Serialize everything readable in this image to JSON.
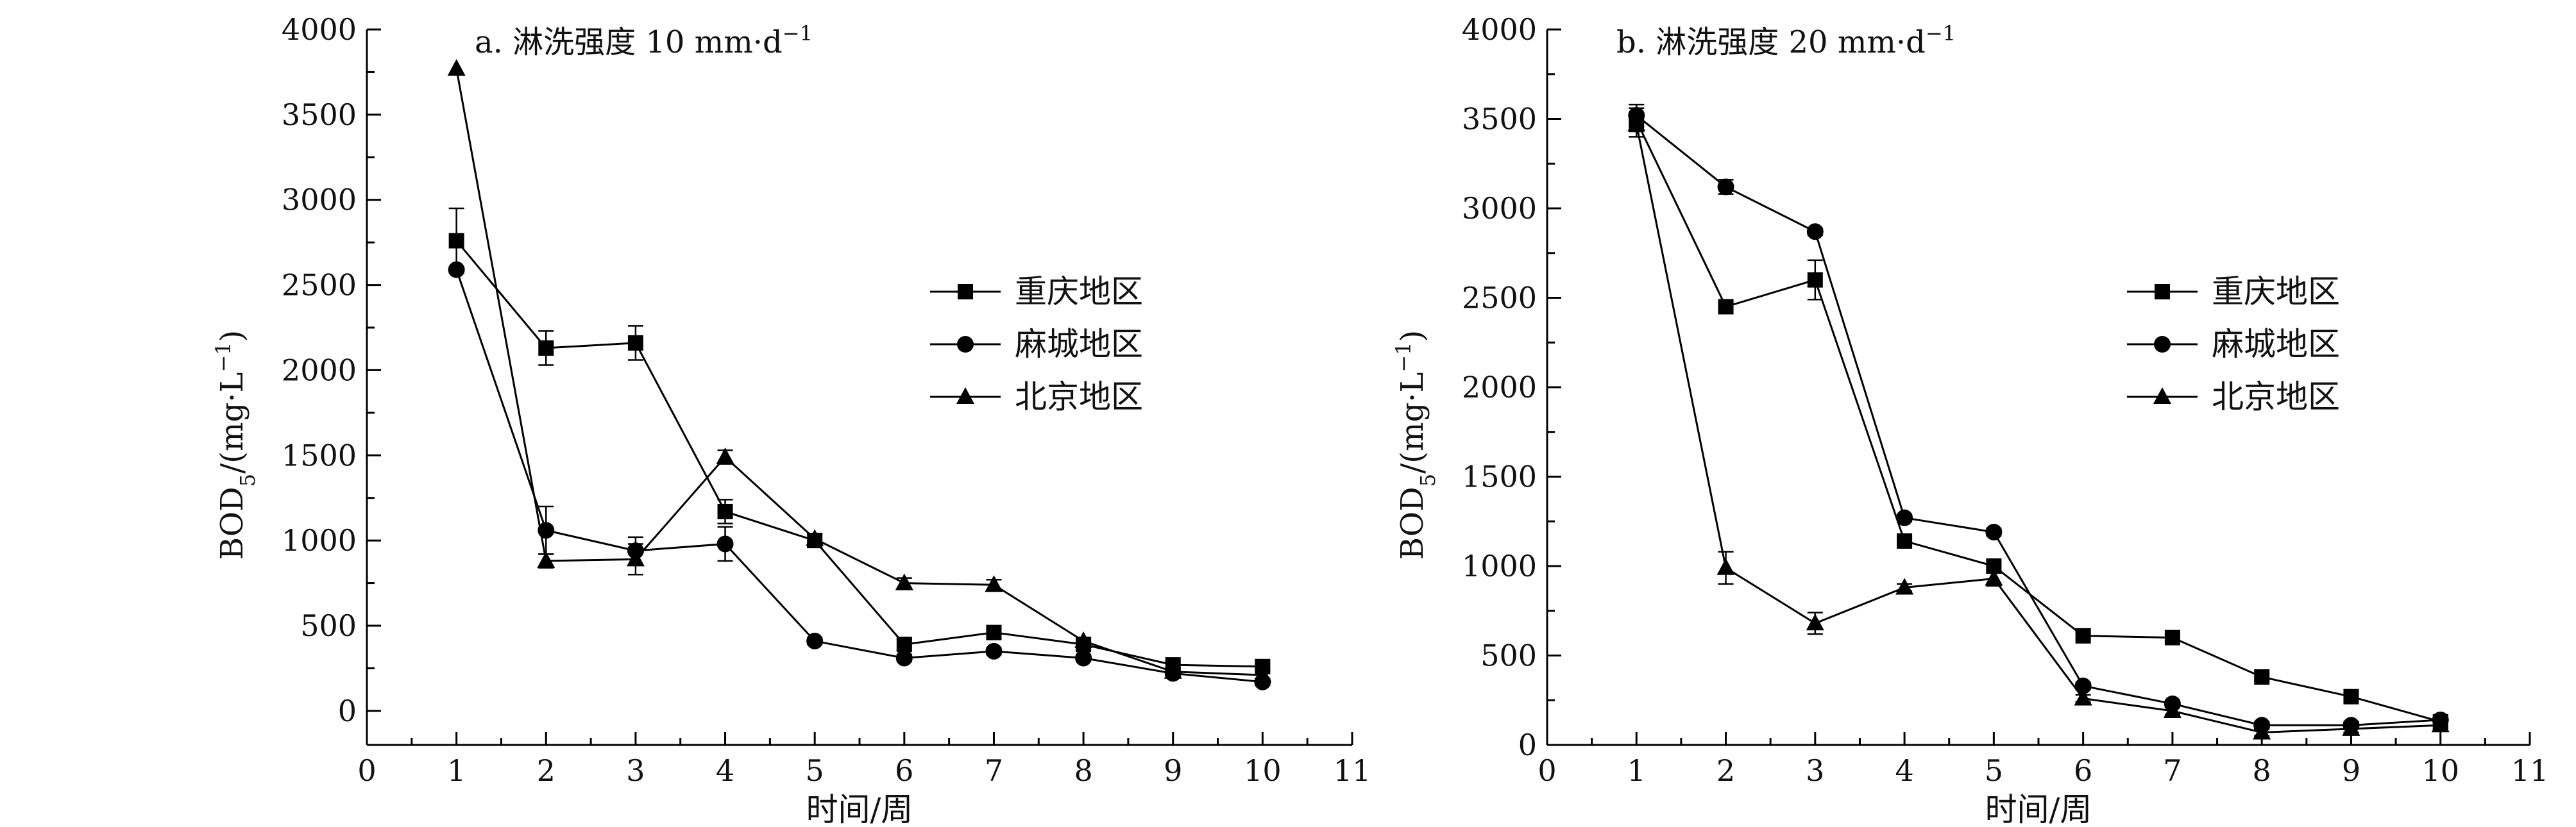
{
  "shared": {
    "xlabel": "时间/周",
    "ylabel_main": "BOD",
    "ylabel_sub": "5",
    "ylabel_rest": "/(mg·L",
    "ylabel_sup": "−1",
    "ylabel_close": ")"
  },
  "chart_data": [
    {
      "type": "line",
      "panel": "a",
      "title_prefix": "a. 淋洗强度 10 mm·d",
      "title_sup": "−1",
      "xlim": [
        0,
        11
      ],
      "ylim": [
        -200,
        4000
      ],
      "xticks": [
        0,
        1,
        2,
        3,
        4,
        5,
        6,
        7,
        8,
        9,
        10,
        11
      ],
      "yticks": [
        0,
        500,
        1000,
        1500,
        2000,
        2500,
        3000,
        3500,
        4000
      ],
      "legend_position": "right-middle",
      "series": [
        {
          "name": "重庆地区",
          "marker": "square",
          "x": [
            1,
            2,
            3,
            4,
            5,
            6,
            7,
            8,
            9,
            10
          ],
          "values": [
            2760,
            2130,
            2160,
            1170,
            1000,
            390,
            460,
            390,
            270,
            260
          ],
          "errors": [
            190,
            100,
            100,
            70,
            40,
            30,
            30,
            20,
            20,
            20
          ]
        },
        {
          "name": "麻城地区",
          "marker": "circle",
          "x": [
            1,
            2,
            3,
            4,
            5,
            6,
            7,
            8,
            9,
            10
          ],
          "values": [
            2590,
            1060,
            940,
            980,
            410,
            310,
            350,
            310,
            220,
            170
          ],
          "errors": [
            0,
            140,
            80,
            100,
            20,
            20,
            20,
            20,
            20,
            20
          ]
        },
        {
          "name": "北京地区",
          "marker": "triangle",
          "x": [
            1,
            2,
            3,
            4,
            5,
            6,
            7,
            8,
            9,
            10
          ],
          "values": [
            3770,
            880,
            890,
            1490,
            1010,
            750,
            740,
            410,
            230,
            210
          ],
          "errors": [
            0,
            40,
            90,
            40,
            30,
            30,
            30,
            20,
            20,
            20
          ]
        }
      ]
    },
    {
      "type": "line",
      "panel": "b",
      "title_prefix": "b. 淋洗强度 20 mm·d",
      "title_sup": "−1",
      "xlim": [
        0,
        11
      ],
      "ylim": [
        0,
        4000
      ],
      "xticks": [
        0,
        1,
        2,
        3,
        4,
        5,
        6,
        7,
        8,
        9,
        10,
        11
      ],
      "yticks": [
        0,
        500,
        1000,
        1500,
        2000,
        2500,
        3000,
        3500,
        4000
      ],
      "legend_position": "right-middle",
      "series": [
        {
          "name": "重庆地区",
          "marker": "square",
          "x": [
            1,
            2,
            3,
            4,
            5,
            6,
            7,
            8,
            9,
            10
          ],
          "values": [
            3490,
            2450,
            2600,
            1140,
            1000,
            610,
            600,
            380,
            270,
            130
          ],
          "errors": [
            90,
            20,
            110,
            20,
            20,
            20,
            20,
            20,
            20,
            20
          ]
        },
        {
          "name": "麻城地区",
          "marker": "circle",
          "x": [
            1,
            2,
            3,
            4,
            5,
            6,
            7,
            8,
            9,
            10
          ],
          "values": [
            3520,
            3120,
            2870,
            1270,
            1190,
            330,
            230,
            110,
            110,
            140
          ],
          "errors": [
            40,
            40,
            20,
            20,
            20,
            20,
            20,
            20,
            20,
            20
          ]
        },
        {
          "name": "北京地区",
          "marker": "triangle",
          "x": [
            1,
            2,
            3,
            4,
            5,
            6,
            7,
            8,
            9,
            10
          ],
          "values": [
            3470,
            990,
            680,
            880,
            930,
            260,
            190,
            70,
            90,
            110
          ],
          "errors": [
            40,
            90,
            60,
            20,
            40,
            20,
            20,
            20,
            20,
            20
          ]
        }
      ]
    }
  ]
}
